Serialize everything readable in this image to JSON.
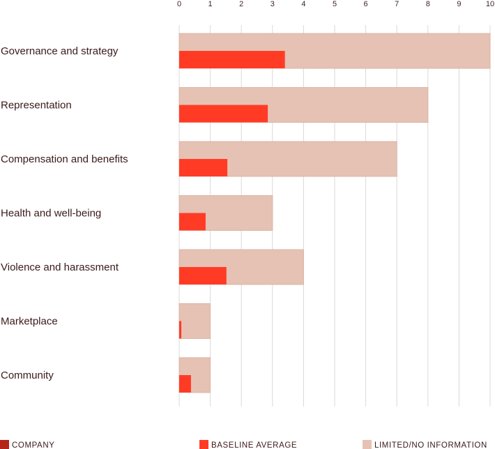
{
  "chart_data": {
    "type": "bar",
    "orientation": "horizontal",
    "categories": [
      "Governance and strategy",
      "Representation",
      "Compensation and benefits",
      "Health and well-being",
      "Violence and harassment",
      "Marketplace",
      "Community"
    ],
    "series": [
      {
        "name": "LIMITED/NO INFORMATION",
        "color": "#e6c2b4",
        "values": [
          10,
          8,
          7,
          3,
          4,
          1,
          1
        ]
      },
      {
        "name": "BASELINE AVERAGE",
        "color": "#ff3b26",
        "values": [
          3.4,
          2.85,
          1.55,
          0.85,
          1.52,
          0.07,
          0.38
        ]
      },
      {
        "name": "COMPANY",
        "color": "#b52418",
        "values": [
          null,
          null,
          null,
          null,
          null,
          null,
          null
        ]
      }
    ],
    "xlim": [
      0,
      10
    ],
    "x_ticks": [
      "0",
      "1",
      "2",
      "3",
      "4",
      "5",
      "6",
      "7",
      "8",
      "9",
      "10"
    ],
    "x_axis_position": "top",
    "grid": true,
    "legend_position": "bottom",
    "legend": [
      {
        "label": "COMPANY",
        "color": "#b52418"
      },
      {
        "label": "BASELINE AVERAGE",
        "color": "#ff3b26"
      },
      {
        "label": "LIMITED/NO INFORMATION",
        "color": "#e6c2b4"
      }
    ],
    "colors": {
      "grid": "#d9d9d9",
      "text": "#3a1a1a"
    }
  }
}
